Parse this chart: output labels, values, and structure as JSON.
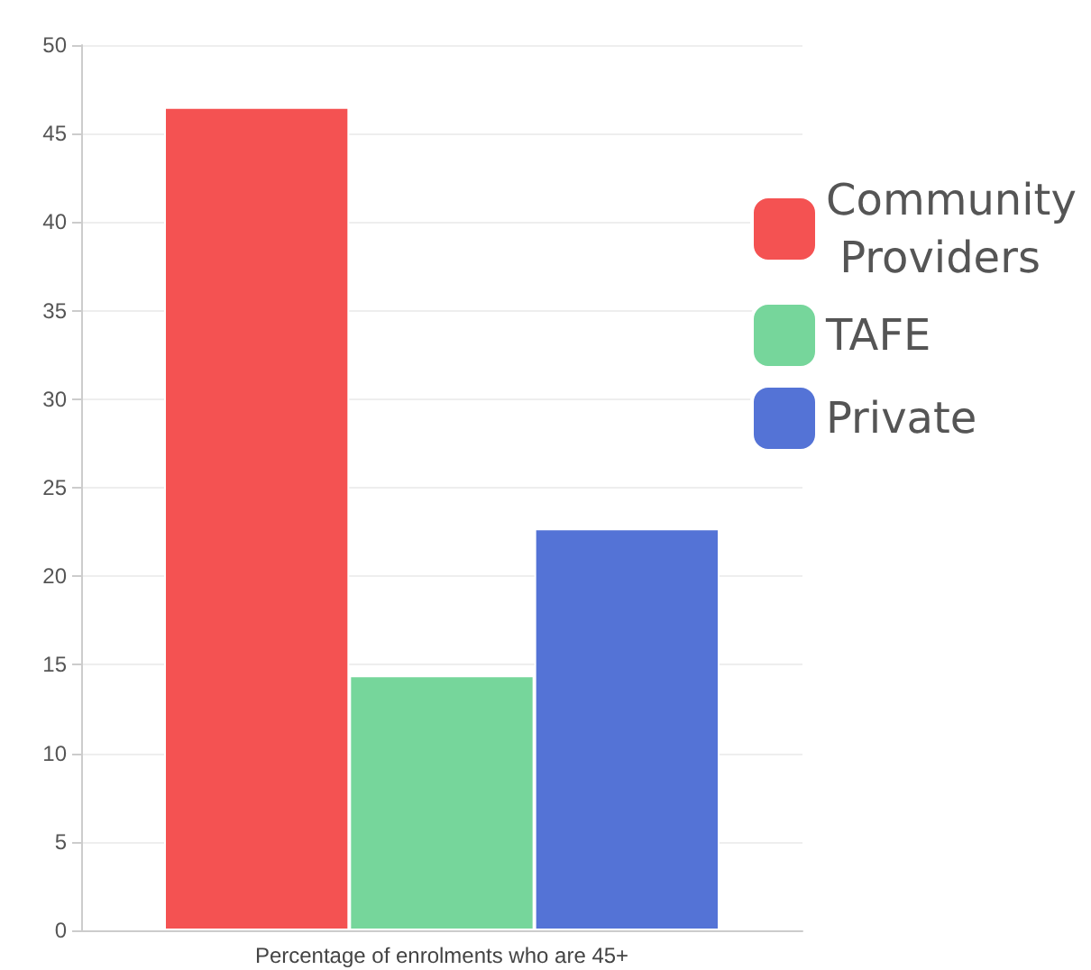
{
  "chart_data": {
    "type": "bar",
    "categories": [
      "Percentage of enrolments who are 45+"
    ],
    "series": [
      {
        "name": "Community Providers",
        "color": "#f45252",
        "values": [
          46.5
        ]
      },
      {
        "name": "TAFE",
        "color": "#76d69b",
        "values": [
          14.4
        ]
      },
      {
        "name": "Private",
        "color": "#5473d6",
        "values": [
          22.7
        ]
      }
    ],
    "ylim": [
      0,
      50
    ],
    "yticks": [
      0,
      5,
      10,
      15,
      20,
      25,
      30,
      35,
      40,
      45,
      50
    ],
    "grid": "y",
    "legend": "right"
  }
}
